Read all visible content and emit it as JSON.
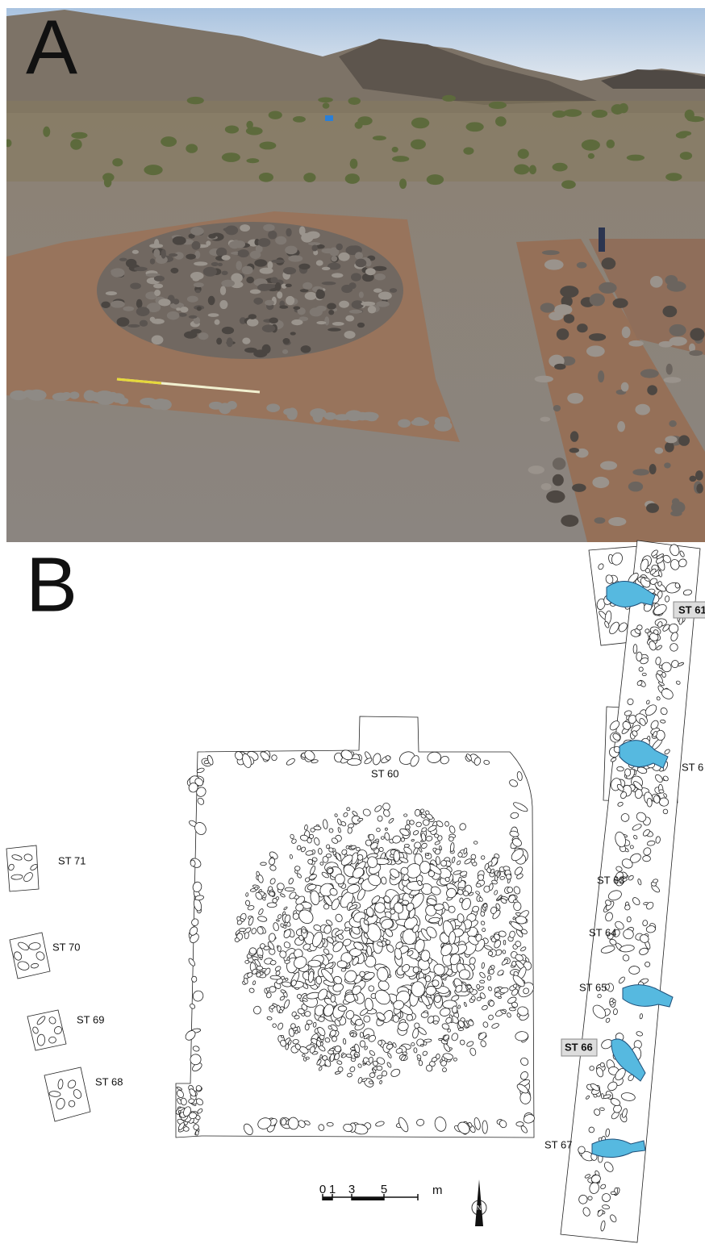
{
  "panel_a": {
    "label": "A"
  },
  "panel_b": {
    "label": "B",
    "structures": [
      "ST 60",
      "ST 61",
      "ST 6",
      "ST 63",
      "ST 64",
      "ST 65",
      "ST 66",
      "ST 67",
      "ST 68",
      "ST 69",
      "ST 70",
      "ST 71"
    ],
    "scale_bar": {
      "ticks": [
        "0",
        "1",
        "3",
        "5"
      ],
      "unit": "m"
    },
    "north": "N"
  }
}
